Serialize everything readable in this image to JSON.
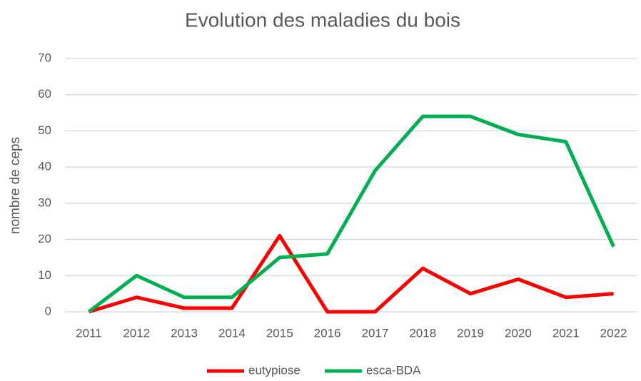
{
  "chart_data": {
    "type": "line",
    "title": "Evolution des maladies du bois",
    "ylabel": "nombre de ceps",
    "categories": [
      "2011",
      "2012",
      "2013",
      "2014",
      "2015",
      "2016",
      "2017",
      "2018",
      "2019",
      "2020",
      "2021",
      "2022"
    ],
    "series": [
      {
        "name": "eutypiose",
        "color": "#ff0000",
        "values": [
          0,
          4,
          1,
          1,
          21,
          0,
          0,
          12,
          5,
          9,
          4,
          5
        ]
      },
      {
        "name": "esca-BDA",
        "color": "#00b050",
        "values": [
          0,
          10,
          4,
          4,
          15,
          16,
          39,
          54,
          54,
          49,
          47,
          18
        ]
      }
    ],
    "ylim": [
      0,
      70
    ],
    "yticks": [
      0,
      10,
      20,
      30,
      40,
      50,
      60,
      70
    ],
    "grid": true,
    "legend": "bottom"
  }
}
